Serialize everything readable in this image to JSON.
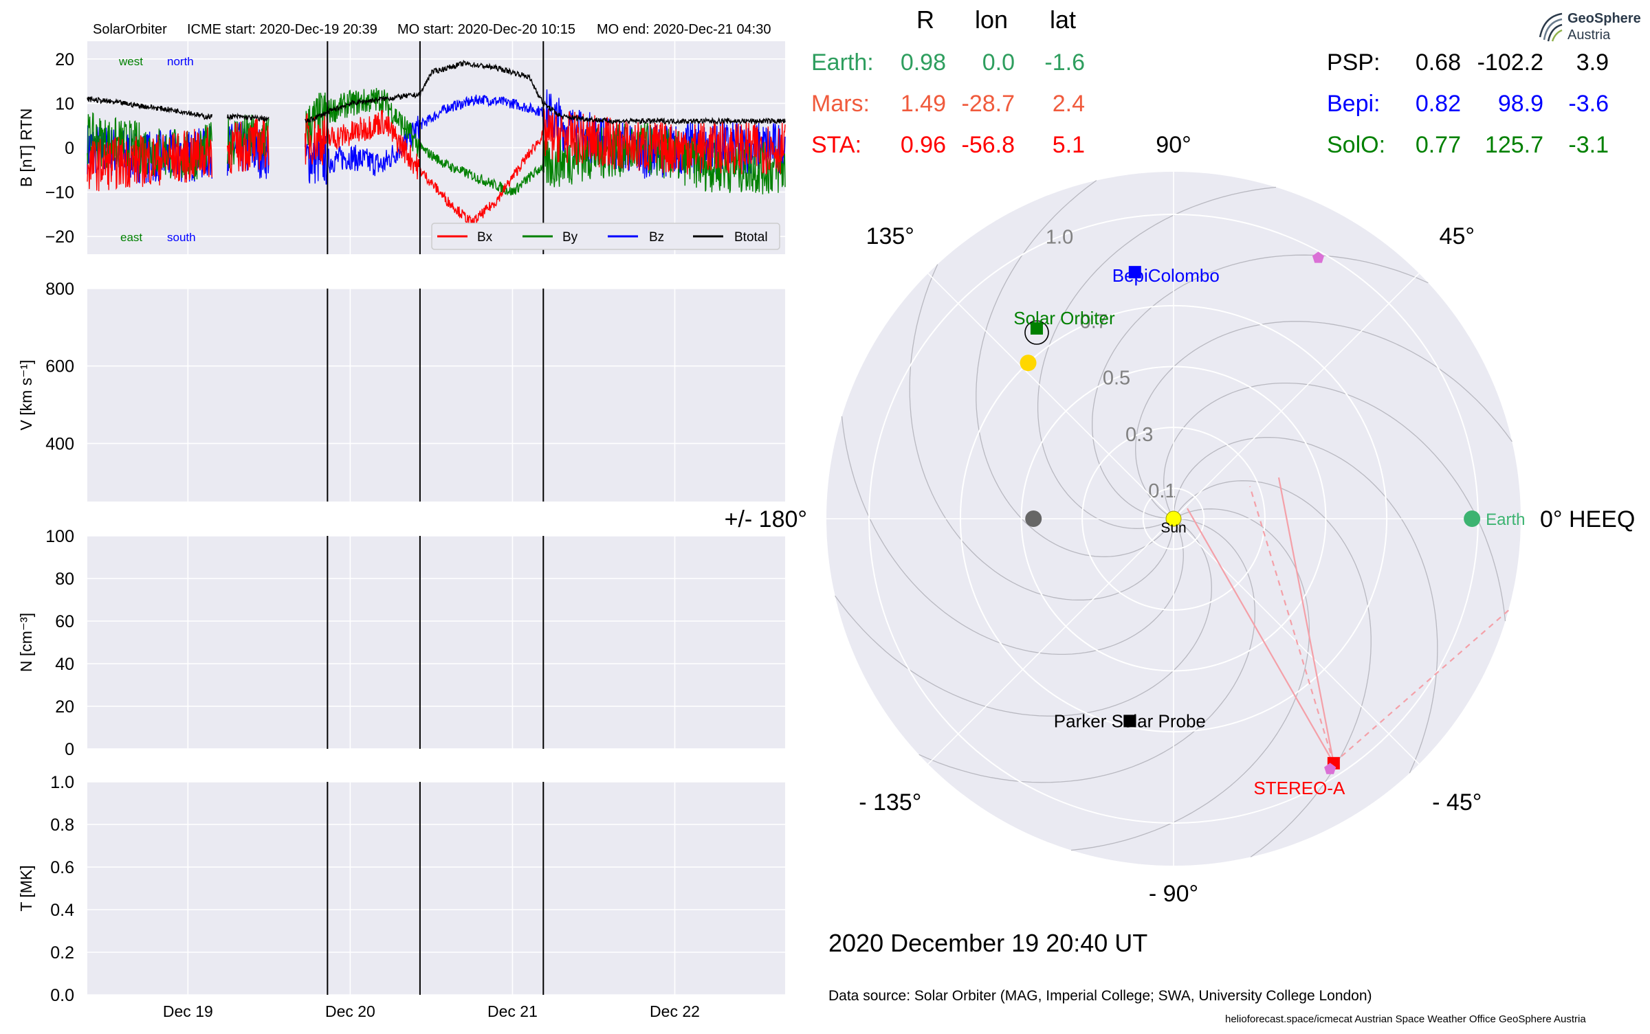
{
  "title": {
    "spacecraft": "SolarOrbiter",
    "icme_start": "ICME start: 2020-Dec-19 20:39",
    "mo_start": "MO start: 2020-Dec-20 10:15",
    "mo_end": "MO end: 2020-Dec-21 04:30"
  },
  "positions_table": {
    "headers": [
      "R",
      "lon",
      "lat"
    ],
    "left_rows": [
      {
        "name": "Earth:",
        "R": "0.98",
        "lon": "0.0",
        "lat": "-1.6",
        "color": "#2e9e5e"
      },
      {
        "name": "Mars:",
        "R": "1.49",
        "lon": "-28.7",
        "lat": "2.4",
        "color": "#f05a3c"
      },
      {
        "name": "STA:",
        "R": "0.96",
        "lon": "-56.8",
        "lat": "5.1",
        "color": "#ff0000"
      }
    ],
    "right_rows": [
      {
        "name": "PSP:",
        "R": "0.68",
        "lon": "-102.2",
        "lat": "3.9",
        "color": "#000000"
      },
      {
        "name": "Bepi:",
        "R": "0.82",
        "lon": "98.9",
        "lat": "-3.6",
        "color": "#0000ff"
      },
      {
        "name": "SolO:",
        "R": "0.77",
        "lon": "125.7",
        "lat": "-3.1",
        "color": "#008000"
      }
    ]
  },
  "logo": {
    "line1": "GeoSphere",
    "line2": "Austria"
  },
  "datetime": "2020 December 19  20:40 UT",
  "data_source": "Data source: Solar Orbiter (MAG, Imperial College; SWA, University College London)",
  "credits": "helioforecast.space/icmecat   Austrian Space Weather Office   GeoSphere Austria",
  "colors": {
    "bx": "#ff0000",
    "by": "#008000",
    "bz": "#0000ff",
    "btotal": "#000000",
    "panel_bg": "#eaeaf2"
  },
  "chart_data": [
    {
      "type": "line",
      "ylabel": "B [nT] RTN",
      "ylim": [
        -24,
        24
      ],
      "yticks": [
        "20",
        "10",
        "0",
        "−10",
        "−20"
      ],
      "ytick_values": [
        20,
        10,
        0,
        -10,
        -20
      ],
      "xlim_days": [
        -0.62,
        3.68
      ],
      "xticks": [
        "Dec 19",
        "Dec 20",
        "Dec 21",
        "Dec 22"
      ],
      "xtick_days": [
        0,
        1,
        2,
        3
      ],
      "event_lines_days": [
        0.86,
        1.43,
        2.19
      ],
      "corner_labels": {
        "top_left": "west",
        "top_right": "north",
        "bottom_left": "east",
        "bottom_right": "south"
      },
      "legend": [
        "Bx",
        "By",
        "Bz",
        "Btotal"
      ],
      "legend_position": "lower-right",
      "data_gaps_days": [
        [
          0.15,
          0.24
        ],
        [
          0.5,
          0.72
        ]
      ],
      "series": [
        {
          "name": "Btotal",
          "x_days": [
            -0.62,
            -0.4,
            -0.2,
            0.0,
            0.1,
            0.3,
            0.48,
            0.74,
            0.86,
            1.0,
            1.2,
            1.43,
            1.5,
            1.7,
            1.9,
            2.1,
            2.19,
            2.3,
            2.6,
            3.0,
            3.4,
            3.68
          ],
          "values": [
            11,
            10,
            9,
            8,
            7,
            7,
            6.5,
            6,
            8,
            10,
            11,
            12,
            17,
            19,
            18,
            16,
            10,
            7,
            6,
            6,
            6,
            6
          ]
        },
        {
          "name": "Bx",
          "x_days": [
            -0.62,
            -0.3,
            0.0,
            0.3,
            0.6,
            0.86,
            1.0,
            1.2,
            1.43,
            1.6,
            1.75,
            1.9,
            2.05,
            2.19,
            2.4,
            2.8,
            3.2,
            3.68
          ],
          "values": [
            -4,
            -3,
            -2,
            0,
            2,
            2,
            3,
            6,
            -5,
            -12,
            -17,
            -12,
            -4,
            3,
            2,
            0,
            0,
            0
          ]
        },
        {
          "name": "By",
          "x_days": [
            -0.62,
            -0.3,
            0.0,
            0.3,
            0.6,
            0.86,
            1.0,
            1.2,
            1.43,
            1.6,
            1.8,
            2.0,
            2.19,
            2.4,
            2.8,
            3.2,
            3.68
          ],
          "values": [
            2,
            0,
            -2,
            2,
            1,
            8,
            10,
            11,
            0,
            -4,
            -7,
            -10,
            -4,
            -2,
            0,
            -4,
            -5
          ]
        },
        {
          "name": "Bz",
          "x_days": [
            -0.62,
            -0.3,
            0.0,
            0.3,
            0.6,
            0.86,
            1.0,
            1.2,
            1.43,
            1.6,
            1.8,
            2.0,
            2.19,
            2.4,
            2.8,
            3.2,
            3.68
          ],
          "values": [
            0,
            -2,
            -2,
            0,
            -2,
            -3,
            -2,
            -4,
            5,
            9,
            11,
            10,
            8,
            3,
            -1,
            0,
            0
          ]
        }
      ]
    },
    {
      "type": "line",
      "ylabel": "V [km s⁻¹]",
      "ylim": [
        250,
        800
      ],
      "yticks": [
        "800",
        "600",
        "400"
      ],
      "ytick_values": [
        800,
        600,
        400
      ],
      "series": []
    },
    {
      "type": "line",
      "ylabel": "N [cm⁻³]",
      "ylim": [
        0,
        100
      ],
      "yticks": [
        "100",
        "80",
        "60",
        "40",
        "20",
        "0"
      ],
      "ytick_values": [
        100,
        80,
        60,
        40,
        20,
        0
      ],
      "series": []
    },
    {
      "type": "line",
      "ylabel": "T [MK]",
      "ylim": [
        0,
        1
      ],
      "yticks": [
        "1.0",
        "0.8",
        "0.6",
        "0.4",
        "0.2",
        "0.0"
      ],
      "ytick_values": [
        1.0,
        0.8,
        0.6,
        0.4,
        0.2,
        0.0
      ],
      "series": []
    },
    {
      "type": "scatter",
      "projection": "polar",
      "rmax": 1.14,
      "radial_ticks": [
        "0.1",
        "0.3",
        "0.5",
        "0.7",
        "1.0"
      ],
      "radial_tick_values": [
        0.1,
        0.3,
        0.5,
        0.7,
        1.0
      ],
      "angle_labels": [
        {
          "text": "0° HEEQ",
          "deg": 0
        },
        {
          "text": "45°",
          "deg": 45
        },
        {
          "text": "90°",
          "deg": 90
        },
        {
          "text": "135°",
          "deg": 135
        },
        {
          "text": "+/- 180°",
          "deg": 180
        },
        {
          "text": "- 135°",
          "deg": -135
        },
        {
          "text": "- 90°",
          "deg": -90
        },
        {
          "text": "- 45°",
          "deg": -45
        }
      ],
      "bodies": [
        {
          "name": "Sun",
          "r": 0.0,
          "lon": 0,
          "color": "#ffff00",
          "marker": "circle"
        },
        {
          "name": "Earth",
          "r": 0.98,
          "lon": 0.0,
          "color": "#3cb371",
          "marker": "circle"
        },
        {
          "name": "",
          "r": 0.46,
          "lon": 180.0,
          "color": "#666666",
          "marker": "circle"
        },
        {
          "name": "",
          "r": 0.7,
          "lon": 133.0,
          "color": "#ffd700",
          "marker": "circle"
        },
        {
          "name": "STEREO-A",
          "r": 0.96,
          "lon": -56.8,
          "color": "#ff0000",
          "marker": "square"
        },
        {
          "name": "BepiColombo",
          "r": 0.82,
          "lon": 98.9,
          "color": "#0000ff",
          "marker": "square"
        },
        {
          "name": "Solar Orbiter",
          "r": 0.77,
          "lon": 125.7,
          "color": "#008000",
          "marker": "square"
        },
        {
          "name": "Parker Solar Probe",
          "r": 0.68,
          "lon": -102.2,
          "color": "#000000",
          "marker": "square"
        },
        {
          "name": "",
          "r": 0.98,
          "lon": 61.0,
          "color": "#da70d6",
          "marker": "pentagon"
        },
        {
          "name": "",
          "r": 0.97,
          "lon": -58.0,
          "color": "#da70d6",
          "marker": "pentagon"
        }
      ]
    }
  ]
}
